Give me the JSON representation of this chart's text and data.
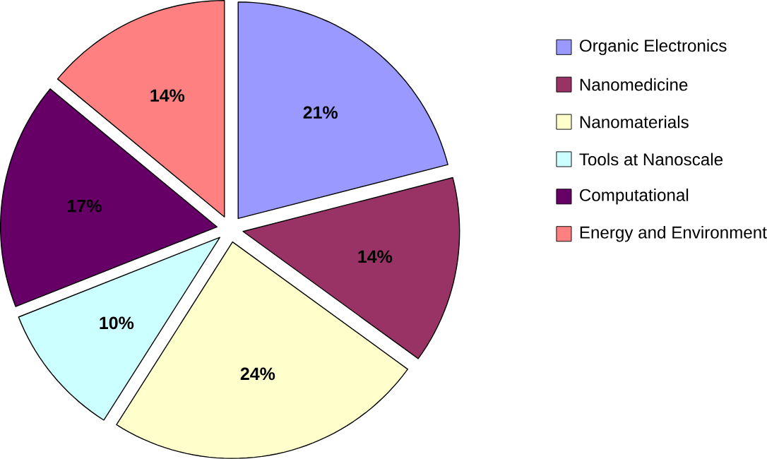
{
  "chart_data": {
    "type": "pie",
    "categories": [
      "Organic Electronics",
      "Nanomedicine",
      "Nanomaterials",
      "Tools at Nanoscale",
      "Computational",
      "Energy and Environment"
    ],
    "values": [
      21,
      14,
      24,
      10,
      17,
      14
    ],
    "value_labels": [
      "21%",
      "14%",
      "24%",
      "10%",
      "17%",
      "14%"
    ],
    "colors": [
      "#9999ff",
      "#993366",
      "#ffffcc",
      "#ccffff",
      "#660066",
      "#ff8080"
    ],
    "legend": "right"
  }
}
